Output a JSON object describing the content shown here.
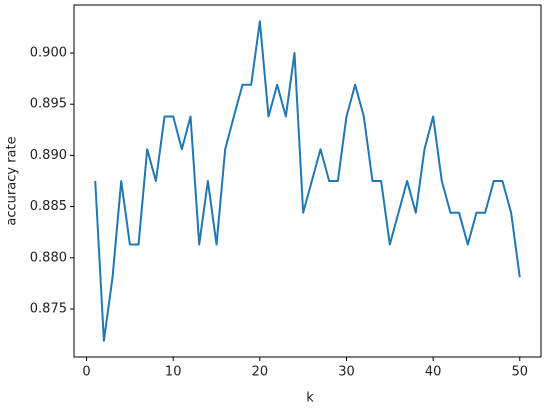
{
  "chart_data": {
    "type": "line",
    "xlabel": "k",
    "ylabel": "accuracy rate",
    "x": [
      1,
      2,
      3,
      4,
      5,
      6,
      7,
      8,
      9,
      10,
      11,
      12,
      13,
      14,
      15,
      16,
      17,
      18,
      19,
      20,
      21,
      22,
      23,
      24,
      25,
      26,
      27,
      28,
      29,
      30,
      31,
      32,
      33,
      34,
      35,
      36,
      37,
      38,
      39,
      40,
      41,
      42,
      43,
      44,
      45,
      46,
      47,
      48,
      49,
      50
    ],
    "series": [
      {
        "color": "#1f77b4",
        "values": [
          0.8875,
          0.8719,
          0.8781,
          0.8875,
          0.8813,
          0.8813,
          0.8906,
          0.8875,
          0.8938,
          0.8938,
          0.8906,
          0.8938,
          0.8813,
          0.8875,
          0.8813,
          0.8906,
          0.8938,
          0.8969,
          0.8969,
          0.9031,
          0.8938,
          0.8969,
          0.8938,
          0.9,
          0.8844,
          0.8875,
          0.8906,
          0.8875,
          0.8875,
          0.8938,
          0.8969,
          0.8938,
          0.8875,
          0.8875,
          0.8813,
          0.8844,
          0.8875,
          0.8844,
          0.8906,
          0.8938,
          0.8875,
          0.8844,
          0.8844,
          0.8813,
          0.8844,
          0.8844,
          0.8875,
          0.8875,
          0.8844,
          0.8781
        ]
      }
    ],
    "xlim": [
      -1.45,
      52.45
    ],
    "ylim": [
      0.87031,
      0.90469
    ],
    "xticks": [
      0,
      10,
      20,
      30,
      40,
      50
    ],
    "yticks": [
      0.875,
      {
        "value": 0.88,
        "label": "0.880"
      },
      0.885,
      {
        "value": 0.89,
        "label": "0.890"
      },
      0.895,
      {
        "value": 0.9,
        "label": "0.900"
      }
    ],
    "grid": false
  }
}
